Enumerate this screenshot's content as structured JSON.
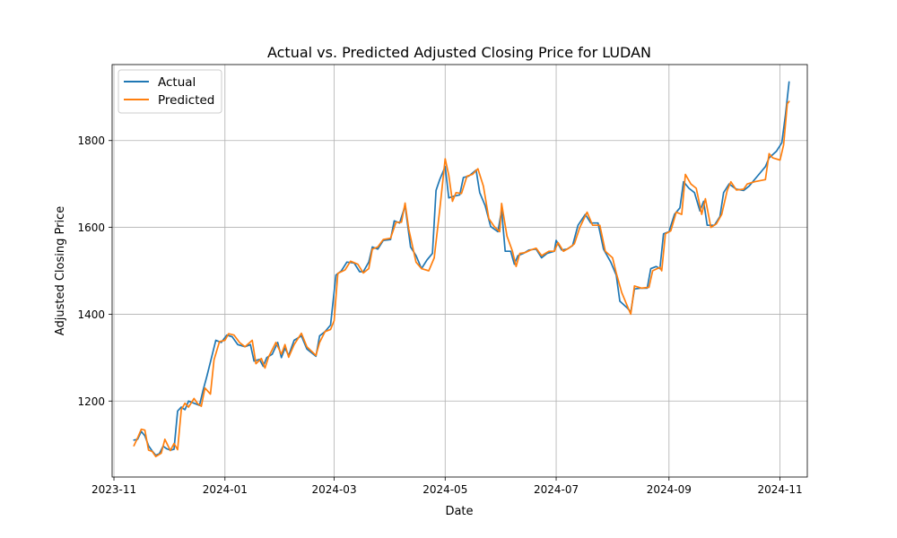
{
  "chart_data": {
    "type": "line",
    "title": "Actual vs. Predicted Adjusted Closing Price for LUDAN",
    "xlabel": "Date",
    "ylabel": "Adjusted Closing Price",
    "grid": true,
    "legend_position": "upper-left",
    "xlim": [
      "2023-10-31",
      "2024-11-16"
    ],
    "ylim": [
      1025,
      1975
    ],
    "x_ticks": [
      {
        "date": "2023-11-01",
        "label": "2023-11"
      },
      {
        "date": "2024-01-01",
        "label": "2024-01"
      },
      {
        "date": "2024-03-01",
        "label": "2024-03"
      },
      {
        "date": "2024-05-01",
        "label": "2024-05"
      },
      {
        "date": "2024-07-01",
        "label": "2024-07"
      },
      {
        "date": "2024-09-01",
        "label": "2024-09"
      },
      {
        "date": "2024-11-01",
        "label": "2024-11"
      }
    ],
    "y_ticks": [
      1200,
      1400,
      1600,
      1800
    ],
    "series": [
      {
        "name": "Actual",
        "color": "#1f77b4",
        "points": [
          [
            "2023-11-12",
            1110
          ],
          [
            "2023-11-14",
            1112
          ],
          [
            "2023-11-16",
            1130
          ],
          [
            "2023-11-18",
            1120
          ],
          [
            "2023-11-20",
            1097
          ],
          [
            "2023-11-22",
            1085
          ],
          [
            "2023-11-24",
            1075
          ],
          [
            "2023-11-26",
            1079
          ],
          [
            "2023-11-28",
            1096
          ],
          [
            "2023-11-30",
            1090
          ],
          [
            "2023-12-02",
            1087
          ],
          [
            "2023-12-04",
            1089
          ],
          [
            "2023-12-06",
            1177
          ],
          [
            "2023-12-08",
            1186
          ],
          [
            "2023-12-10",
            1180
          ],
          [
            "2023-12-12",
            1200
          ],
          [
            "2023-12-15",
            1195
          ],
          [
            "2023-12-18",
            1190
          ],
          [
            "2023-12-20",
            1225
          ],
          [
            "2023-12-22",
            1256
          ],
          [
            "2023-12-24",
            1290
          ],
          [
            "2023-12-27",
            1340
          ],
          [
            "2023-12-30",
            1335
          ],
          [
            "2024-01-02",
            1352
          ],
          [
            "2024-01-05",
            1348
          ],
          [
            "2024-01-08",
            1330
          ],
          [
            "2024-01-12",
            1325
          ],
          [
            "2024-01-15",
            1330
          ],
          [
            "2024-01-17",
            1292
          ],
          [
            "2024-01-20",
            1296
          ],
          [
            "2024-01-22",
            1280
          ],
          [
            "2024-01-24",
            1300
          ],
          [
            "2024-01-27",
            1308
          ],
          [
            "2024-01-30",
            1335
          ],
          [
            "2024-02-01",
            1300
          ],
          [
            "2024-02-03",
            1322
          ],
          [
            "2024-02-05",
            1305
          ],
          [
            "2024-02-08",
            1340
          ],
          [
            "2024-02-12",
            1350
          ],
          [
            "2024-02-15",
            1320
          ],
          [
            "2024-02-20",
            1303
          ],
          [
            "2024-02-22",
            1350
          ],
          [
            "2024-02-25",
            1360
          ],
          [
            "2024-02-28",
            1375
          ],
          [
            "2024-03-02",
            1490
          ],
          [
            "2024-03-05",
            1500
          ],
          [
            "2024-03-08",
            1520
          ],
          [
            "2024-03-12",
            1518
          ],
          [
            "2024-03-15",
            1498
          ],
          [
            "2024-03-17",
            1498
          ],
          [
            "2024-03-20",
            1520
          ],
          [
            "2024-03-22",
            1555
          ],
          [
            "2024-03-25",
            1550
          ],
          [
            "2024-03-28",
            1570
          ],
          [
            "2024-04-01",
            1572
          ],
          [
            "2024-04-03",
            1615
          ],
          [
            "2024-04-06",
            1610
          ],
          [
            "2024-04-09",
            1650
          ],
          [
            "2024-04-12",
            1555
          ],
          [
            "2024-04-15",
            1535
          ],
          [
            "2024-04-18",
            1505
          ],
          [
            "2024-04-21",
            1525
          ],
          [
            "2024-04-24",
            1540
          ],
          [
            "2024-04-26",
            1685
          ],
          [
            "2024-04-28",
            1710
          ],
          [
            "2024-05-01",
            1740
          ],
          [
            "2024-05-03",
            1668
          ],
          [
            "2024-05-06",
            1672
          ],
          [
            "2024-05-09",
            1675
          ],
          [
            "2024-05-11",
            1715
          ],
          [
            "2024-05-14",
            1718
          ],
          [
            "2024-05-18",
            1732
          ],
          [
            "2024-05-20",
            1680
          ],
          [
            "2024-05-23",
            1650
          ],
          [
            "2024-05-26",
            1602
          ],
          [
            "2024-05-30",
            1590
          ],
          [
            "2024-06-01",
            1640
          ],
          [
            "2024-06-03",
            1545
          ],
          [
            "2024-06-06",
            1545
          ],
          [
            "2024-06-08",
            1515
          ],
          [
            "2024-06-10",
            1535
          ],
          [
            "2024-06-13",
            1540
          ],
          [
            "2024-06-16",
            1548
          ],
          [
            "2024-06-20",
            1550
          ],
          [
            "2024-06-23",
            1530
          ],
          [
            "2024-06-26",
            1540
          ],
          [
            "2024-06-30",
            1545
          ],
          [
            "2024-07-01",
            1570
          ],
          [
            "2024-07-04",
            1548
          ],
          [
            "2024-07-07",
            1550
          ],
          [
            "2024-07-10",
            1558
          ],
          [
            "2024-07-13",
            1605
          ],
          [
            "2024-07-17",
            1630
          ],
          [
            "2024-07-20",
            1610
          ],
          [
            "2024-07-24",
            1610
          ],
          [
            "2024-07-27",
            1550
          ],
          [
            "2024-07-31",
            1520
          ],
          [
            "2024-08-03",
            1490
          ],
          [
            "2024-08-05",
            1430
          ],
          [
            "2024-08-09",
            1415
          ],
          [
            "2024-08-11",
            1405
          ],
          [
            "2024-08-13",
            1458
          ],
          [
            "2024-08-16",
            1460
          ],
          [
            "2024-08-20",
            1460
          ],
          [
            "2024-08-22",
            1505
          ],
          [
            "2024-08-25",
            1510
          ],
          [
            "2024-08-27",
            1505
          ],
          [
            "2024-08-29",
            1585
          ],
          [
            "2024-09-01",
            1590
          ],
          [
            "2024-09-04",
            1630
          ],
          [
            "2024-09-07",
            1645
          ],
          [
            "2024-09-09",
            1705
          ],
          [
            "2024-09-12",
            1690
          ],
          [
            "2024-09-15",
            1680
          ],
          [
            "2024-09-18",
            1638
          ],
          [
            "2024-09-20",
            1660
          ],
          [
            "2024-09-22",
            1605
          ],
          [
            "2024-09-26",
            1605
          ],
          [
            "2024-09-29",
            1625
          ],
          [
            "2024-10-01",
            1680
          ],
          [
            "2024-10-04",
            1700
          ],
          [
            "2024-10-08",
            1688
          ],
          [
            "2024-10-12",
            1685
          ],
          [
            "2024-10-15",
            1695
          ],
          [
            "2024-10-20",
            1720
          ],
          [
            "2024-10-24",
            1740
          ],
          [
            "2024-10-26",
            1760
          ],
          [
            "2024-10-30",
            1775
          ],
          [
            "2024-11-02",
            1795
          ],
          [
            "2024-11-04",
            1860
          ],
          [
            "2024-11-06",
            1935
          ]
        ]
      },
      {
        "name": "Predicted",
        "color": "#ff7f0e",
        "points": [
          [
            "2023-11-12",
            1097
          ],
          [
            "2023-11-14",
            1115
          ],
          [
            "2023-11-16",
            1135
          ],
          [
            "2023-11-18",
            1133
          ],
          [
            "2023-11-20",
            1087
          ],
          [
            "2023-11-22",
            1084
          ],
          [
            "2023-11-24",
            1072
          ],
          [
            "2023-11-27",
            1080
          ],
          [
            "2023-11-29",
            1112
          ],
          [
            "2023-12-02",
            1086
          ],
          [
            "2023-12-04",
            1102
          ],
          [
            "2023-12-06",
            1088
          ],
          [
            "2023-12-08",
            1180
          ],
          [
            "2023-12-10",
            1195
          ],
          [
            "2023-12-12",
            1186
          ],
          [
            "2023-12-15",
            1206
          ],
          [
            "2023-12-17",
            1194
          ],
          [
            "2023-12-19",
            1188
          ],
          [
            "2023-12-21",
            1230
          ],
          [
            "2023-12-24",
            1216
          ],
          [
            "2023-12-26",
            1295
          ],
          [
            "2023-12-29",
            1337
          ],
          [
            "2024-01-01",
            1340
          ],
          [
            "2024-01-03",
            1355
          ],
          [
            "2024-01-06",
            1352
          ],
          [
            "2024-01-09",
            1335
          ],
          [
            "2024-01-12",
            1325
          ],
          [
            "2024-01-16",
            1340
          ],
          [
            "2024-01-18",
            1286
          ],
          [
            "2024-01-21",
            1298
          ],
          [
            "2024-01-23",
            1276
          ],
          [
            "2024-01-25",
            1302
          ],
          [
            "2024-01-29",
            1335
          ],
          [
            "2024-02-01",
            1308
          ],
          [
            "2024-02-03",
            1330
          ],
          [
            "2024-02-05",
            1301
          ],
          [
            "2024-02-08",
            1330
          ],
          [
            "2024-02-12",
            1356
          ],
          [
            "2024-02-15",
            1325
          ],
          [
            "2024-02-20",
            1305
          ],
          [
            "2024-02-22",
            1335
          ],
          [
            "2024-02-25",
            1360
          ],
          [
            "2024-02-28",
            1365
          ],
          [
            "2024-03-01",
            1385
          ],
          [
            "2024-03-03",
            1494
          ],
          [
            "2024-03-07",
            1502
          ],
          [
            "2024-03-10",
            1522
          ],
          [
            "2024-03-14",
            1515
          ],
          [
            "2024-03-17",
            1495
          ],
          [
            "2024-03-20",
            1505
          ],
          [
            "2024-03-22",
            1550
          ],
          [
            "2024-03-25",
            1555
          ],
          [
            "2024-03-28",
            1572
          ],
          [
            "2024-04-01",
            1575
          ],
          [
            "2024-04-04",
            1612
          ],
          [
            "2024-04-07",
            1612
          ],
          [
            "2024-04-09",
            1656
          ],
          [
            "2024-04-11",
            1596
          ],
          [
            "2024-04-15",
            1520
          ],
          [
            "2024-04-18",
            1505
          ],
          [
            "2024-04-22",
            1500
          ],
          [
            "2024-04-25",
            1530
          ],
          [
            "2024-04-28",
            1640
          ],
          [
            "2024-05-01",
            1758
          ],
          [
            "2024-05-03",
            1720
          ],
          [
            "2024-05-05",
            1660
          ],
          [
            "2024-05-07",
            1680
          ],
          [
            "2024-05-10",
            1678
          ],
          [
            "2024-05-13",
            1718
          ],
          [
            "2024-05-16",
            1722
          ],
          [
            "2024-05-19",
            1735
          ],
          [
            "2024-05-22",
            1695
          ],
          [
            "2024-05-25",
            1620
          ],
          [
            "2024-05-28",
            1602
          ],
          [
            "2024-05-31",
            1590
          ],
          [
            "2024-06-01",
            1655
          ],
          [
            "2024-06-04",
            1580
          ],
          [
            "2024-06-07",
            1545
          ],
          [
            "2024-06-09",
            1510
          ],
          [
            "2024-06-11",
            1540
          ],
          [
            "2024-06-14",
            1542
          ],
          [
            "2024-06-17",
            1548
          ],
          [
            "2024-06-20",
            1552
          ],
          [
            "2024-06-23",
            1535
          ],
          [
            "2024-06-27",
            1545
          ],
          [
            "2024-06-30",
            1545
          ],
          [
            "2024-07-02",
            1565
          ],
          [
            "2024-07-05",
            1545
          ],
          [
            "2024-07-08",
            1552
          ],
          [
            "2024-07-11",
            1562
          ],
          [
            "2024-07-14",
            1600
          ],
          [
            "2024-07-18",
            1635
          ],
          [
            "2024-07-21",
            1605
          ],
          [
            "2024-07-25",
            1605
          ],
          [
            "2024-07-28",
            1545
          ],
          [
            "2024-08-01",
            1530
          ],
          [
            "2024-08-03",
            1495
          ],
          [
            "2024-08-06",
            1450
          ],
          [
            "2024-08-09",
            1420
          ],
          [
            "2024-08-11",
            1400
          ],
          [
            "2024-08-13",
            1465
          ],
          [
            "2024-08-17",
            1460
          ],
          [
            "2024-08-21",
            1462
          ],
          [
            "2024-08-23",
            1500
          ],
          [
            "2024-08-27",
            1508
          ],
          [
            "2024-08-28",
            1500
          ],
          [
            "2024-08-30",
            1585
          ],
          [
            "2024-09-02",
            1592
          ],
          [
            "2024-09-05",
            1635
          ],
          [
            "2024-09-08",
            1630
          ],
          [
            "2024-09-10",
            1722
          ],
          [
            "2024-09-13",
            1700
          ],
          [
            "2024-09-16",
            1690
          ],
          [
            "2024-09-19",
            1630
          ],
          [
            "2024-09-21",
            1666
          ],
          [
            "2024-09-24",
            1600
          ],
          [
            "2024-09-27",
            1608
          ],
          [
            "2024-09-30",
            1630
          ],
          [
            "2024-10-03",
            1685
          ],
          [
            "2024-10-05",
            1705
          ],
          [
            "2024-10-08",
            1686
          ],
          [
            "2024-10-12",
            1688
          ],
          [
            "2024-10-14",
            1700
          ],
          [
            "2024-10-18",
            1705
          ],
          [
            "2024-10-24",
            1710
          ],
          [
            "2024-10-26",
            1770
          ],
          [
            "2024-10-28",
            1760
          ],
          [
            "2024-11-01",
            1755
          ],
          [
            "2024-11-03",
            1790
          ],
          [
            "2024-11-05",
            1885
          ],
          [
            "2024-11-06",
            1890
          ]
        ]
      }
    ]
  }
}
